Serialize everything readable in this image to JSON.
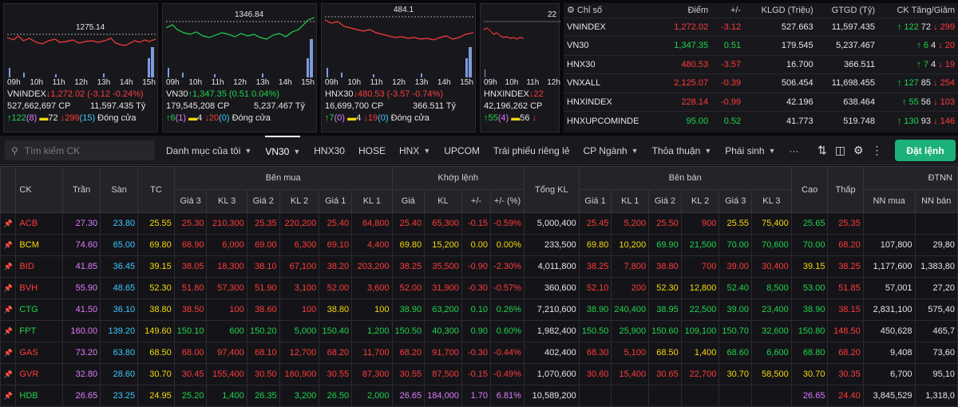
{
  "panels": [
    {
      "ref_label": "1275.14",
      "name": "VNINDEX",
      "arrow": "↓",
      "value": "1,272.02 (-3.12 -0.24%)",
      "dir": "dn",
      "vol": "527,662,697 CP",
      "val": "11,597.435 Tỷ",
      "c_up": "122",
      "c_up2": "(8)",
      "c_ref": "72",
      "c_dn": "299",
      "c_dn2": "(15)",
      "status": "Đóng cửa",
      "axis": [
        "09h",
        "10h",
        "11h",
        "12h",
        "13h",
        "14h",
        "15h"
      ]
    },
    {
      "ref_label": "1346.84",
      "name": "VN30",
      "arrow": "↑",
      "value": "1,347.35 (0.51 0.04%)",
      "dir": "up",
      "vol": "179,545,208 CP",
      "val": "5,237.467 Tỷ",
      "c_up": "6",
      "c_up2": "(1)",
      "c_ref": "4",
      "c_dn": "20",
      "c_dn2": "(0)",
      "status": "Đóng cửa",
      "axis": [
        "09h",
        "10h",
        "11h",
        "12h",
        "13h",
        "14h",
        "15h"
      ]
    },
    {
      "ref_label": "484.1",
      "name": "HNX30",
      "arrow": "↓",
      "value": "480.53 (-3.57 -0.74%)",
      "dir": "dn",
      "vol": "16,699,700 CP",
      "val": "366.511 Tỷ",
      "c_up": "7",
      "c_up2": "(0)",
      "c_ref": "4",
      "c_dn": "19",
      "c_dn2": "(0)",
      "status": "Đóng cửa",
      "axis": [
        "09h",
        "10h",
        "11h",
        "12h",
        "13h",
        "14h",
        "15h"
      ]
    },
    {
      "ref_label": "22",
      "name": "HNXINDEX",
      "arrow": "↓",
      "value": "22",
      "dir": "dn",
      "vol": "42,196,262 CP",
      "val": "",
      "c_up": "55",
      "c_up2": "(4)",
      "c_ref": "56",
      "c_dn": "",
      "c_dn2": "",
      "status": "",
      "axis": [
        "09h",
        "10h",
        "11h",
        "12h"
      ]
    }
  ],
  "index_table": {
    "headers": [
      "Chỉ số",
      "Điểm",
      "+/-",
      "KLGD (Triệu)",
      "GTGD (Tỷ)",
      "CK Tăng/Giảm"
    ],
    "rows": [
      {
        "name": "VNINDEX",
        "point": "1,272.02",
        "chg": "-3.12",
        "dir": "dn",
        "vol": "527.663",
        "val": "11,597.435",
        "up": "122",
        "ref": "72",
        "dn": "299"
      },
      {
        "name": "VN30",
        "point": "1,347.35",
        "chg": "0.51",
        "dir": "up",
        "vol": "179.545",
        "val": "5,237.467",
        "up": "6",
        "ref": "4",
        "dn": "20"
      },
      {
        "name": "HNX30",
        "point": "480.53",
        "chg": "-3.57",
        "dir": "dn",
        "vol": "16.700",
        "val": "366.511",
        "up": "7",
        "ref": "4",
        "dn": "19"
      },
      {
        "name": "VNXALL",
        "point": "2,125.07",
        "chg": "-0.39",
        "dir": "dn",
        "vol": "506.454",
        "val": "11,698.455",
        "up": "127",
        "ref": "85",
        "dn": "254"
      },
      {
        "name": "HNXINDEX",
        "point": "228.14",
        "chg": "-0.99",
        "dir": "dn",
        "vol": "42.196",
        "val": "638.464",
        "up": "55",
        "ref": "56",
        "dn": "103"
      },
      {
        "name": "HNXUPCOMINDE",
        "point": "95.00",
        "chg": "0.52",
        "dir": "up",
        "vol": "41.773",
        "val": "519.748",
        "up": "130",
        "ref": "93",
        "dn": "146"
      }
    ]
  },
  "toolbar": {
    "search_placeholder": "Tìm kiếm CK",
    "tabs": [
      "Danh mục của tôi",
      "VN30",
      "HNX30",
      "HOSE",
      "HNX",
      "UPCOM",
      "Trái phiếu riêng lẻ",
      "CP Ngành",
      "Thỏa thuận",
      "Phái sinh",
      "···"
    ],
    "order_button": "Đặt lệnh"
  },
  "board": {
    "group_headers": {
      "bid": "Bên mua",
      "match": "Khớp lệnh",
      "ask": "Bên bán",
      "foreign": "ĐTNN"
    },
    "cols": {
      "ck": "CK",
      "tran": "Trần",
      "san": "Sàn",
      "tc": "TC",
      "g3": "Giá 3",
      "kl3": "KL 3",
      "g2": "Giá 2",
      "kl2": "KL 2",
      "g1": "Giá 1",
      "kl1": "KL 1",
      "gia": "Giá",
      "kl": "KL",
      "pm": "+/-",
      "pct": "+/- (%)",
      "tkl": "Tổng KL",
      "cao": "Cao",
      "thap": "Thấp",
      "nnmua": "NN mua",
      "nnban": "NN bán"
    },
    "rows": [
      {
        "ck": "ACB",
        "c": "dn",
        "tran": "27.30",
        "san": "23.80",
        "tc": "25.55",
        "b3": [
          "25.30",
          "210,300",
          "dn"
        ],
        "b2": [
          "25.35",
          "220,200",
          "dn"
        ],
        "b1": [
          "25.40",
          "64,800",
          "dn"
        ],
        "m": [
          "25.40",
          "65,300",
          "-0.15",
          "-0.59%",
          "dn"
        ],
        "tkl": "5,000,400",
        "s1": [
          "25.45",
          "5,200",
          "dn"
        ],
        "s2": [
          "25.50",
          "900",
          "dn"
        ],
        "s3": [
          "25.55",
          "75,400",
          "ref"
        ],
        "cao": [
          "25.65",
          "up"
        ],
        "thap": [
          "25.35",
          "dn"
        ],
        "nnm": "",
        "nnb": ""
      },
      {
        "ck": "BCM",
        "c": "ref",
        "tran": "74.60",
        "san": "65.00",
        "tc": "69.80",
        "b3": [
          "68.90",
          "6,000",
          "dn"
        ],
        "b2": [
          "69.00",
          "6,300",
          "dn"
        ],
        "b1": [
          "69.10",
          "4,400",
          "dn"
        ],
        "m": [
          "69.80",
          "15,200",
          "0.00",
          "0.00%",
          "ref"
        ],
        "tkl": "233,500",
        "s1": [
          "69.80",
          "10,200",
          "ref"
        ],
        "s2": [
          "69.90",
          "21,500",
          "up"
        ],
        "s3": [
          "70.00",
          "70,600",
          "up"
        ],
        "cao": [
          "70.00",
          "up"
        ],
        "thap": [
          "68.20",
          "dn"
        ],
        "nnm": "107,800",
        "nnb": "29,80"
      },
      {
        "ck": "BID",
        "c": "dn",
        "tran": "41.85",
        "san": "36.45",
        "tc": "39.15",
        "b3": [
          "38.05",
          "18,300",
          "dn"
        ],
        "b2": [
          "38.10",
          "67,100",
          "dn"
        ],
        "b1": [
          "38.20",
          "203,200",
          "dn"
        ],
        "m": [
          "38.25",
          "35,500",
          "-0.90",
          "-2.30%",
          "dn"
        ],
        "tkl": "4,011,800",
        "s1": [
          "38.25",
          "7,800",
          "dn"
        ],
        "s2": [
          "38.80",
          "700",
          "dn"
        ],
        "s3": [
          "39.00",
          "30,400",
          "dn"
        ],
        "cao": [
          "39.15",
          "ref"
        ],
        "thap": [
          "38.25",
          "dn"
        ],
        "nnm": "1,177,600",
        "nnb": "1,383,80"
      },
      {
        "ck": "BVH",
        "c": "dn",
        "tran": "55.90",
        "san": "48.65",
        "tc": "52.30",
        "b3": [
          "51.80",
          "57,300",
          "dn"
        ],
        "b2": [
          "51.90",
          "3,100",
          "dn"
        ],
        "b1": [
          "52.00",
          "3,600",
          "dn"
        ],
        "m": [
          "52.00",
          "31,900",
          "-0.30",
          "-0.57%",
          "dn"
        ],
        "tkl": "360,600",
        "s1": [
          "52.10",
          "200",
          "dn"
        ],
        "s2": [
          "52.30",
          "12,800",
          "ref"
        ],
        "s3": [
          "52.40",
          "8,500",
          "up"
        ],
        "cao": [
          "53.00",
          "up"
        ],
        "thap": [
          "51.85",
          "dn"
        ],
        "nnm": "57,001",
        "nnb": "27,20"
      },
      {
        "ck": "CTG",
        "c": "up",
        "tran": "41.50",
        "san": "36.10",
        "tc": "38.80",
        "b3": [
          "38.50",
          "100",
          "dn"
        ],
        "b2": [
          "38.60",
          "100",
          "dn"
        ],
        "b1": [
          "38.80",
          "100",
          "ref"
        ],
        "m": [
          "38.90",
          "63,200",
          "0.10",
          "0.26%",
          "up"
        ],
        "tkl": "7,210,600",
        "s1": [
          "38.90",
          "240,400",
          "up"
        ],
        "s2": [
          "38.95",
          "22,500",
          "up"
        ],
        "s3": [
          "39.00",
          "23,400",
          "up"
        ],
        "cao": [
          "38.90",
          "up"
        ],
        "thap": [
          "38.15",
          "dn"
        ],
        "nnm": "2,831,100",
        "nnb": "575,40"
      },
      {
        "ck": "FPT",
        "c": "up",
        "tran": "160.00",
        "san": "139.20",
        "tc": "149.60",
        "b3": [
          "150.10",
          "600",
          "up"
        ],
        "b2": [
          "150.20",
          "5,000",
          "up"
        ],
        "b1": [
          "150.40",
          "1,200",
          "up"
        ],
        "m": [
          "150.50",
          "40,300",
          "0.90",
          "0.60%",
          "up"
        ],
        "tkl": "1,982,400",
        "s1": [
          "150.50",
          "25,900",
          "up"
        ],
        "s2": [
          "150.60",
          "109,100",
          "up"
        ],
        "s3": [
          "150.70",
          "32,600",
          "up"
        ],
        "cao": [
          "150.80",
          "up"
        ],
        "thap": [
          "148.50",
          "dn"
        ],
        "nnm": "450,628",
        "nnb": "465,7"
      },
      {
        "ck": "GAS",
        "c": "dn",
        "tran": "73.20",
        "san": "63.80",
        "tc": "68.50",
        "b3": [
          "68.00",
          "97,400",
          "dn"
        ],
        "b2": [
          "68.10",
          "12,700",
          "dn"
        ],
        "b1": [
          "68.20",
          "11,700",
          "dn"
        ],
        "m": [
          "68.20",
          "91,700",
          "-0.30",
          "-0.44%",
          "dn"
        ],
        "tkl": "402,400",
        "s1": [
          "68.30",
          "5,100",
          "dn"
        ],
        "s2": [
          "68.50",
          "1,400",
          "ref"
        ],
        "s3": [
          "68.60",
          "6,600",
          "up"
        ],
        "cao": [
          "68.80",
          "up"
        ],
        "thap": [
          "68.20",
          "dn"
        ],
        "nnm": "9,408",
        "nnb": "73,60"
      },
      {
        "ck": "GVR",
        "c": "dn",
        "tran": "32.80",
        "san": "28.60",
        "tc": "30.70",
        "b3": [
          "30.45",
          "155,400",
          "dn"
        ],
        "b2": [
          "30.50",
          "160,900",
          "dn"
        ],
        "b1": [
          "30.55",
          "87,300",
          "dn"
        ],
        "m": [
          "30.55",
          "87,500",
          "-0.15",
          "-0.49%",
          "dn"
        ],
        "tkl": "1,070,600",
        "s1": [
          "30.60",
          "15,400",
          "dn"
        ],
        "s2": [
          "30.65",
          "22,700",
          "dn"
        ],
        "s3": [
          "30.70",
          "58,500",
          "ref"
        ],
        "cao": [
          "30.70",
          "ref"
        ],
        "thap": [
          "30.35",
          "dn"
        ],
        "nnm": "6,700",
        "nnb": "95,10"
      },
      {
        "ck": "HDB",
        "c": "up",
        "tran": "26.65",
        "san": "23.25",
        "tc": "24.95",
        "b3": [
          "25.20",
          "1,400",
          "up"
        ],
        "b2": [
          "26.35",
          "3,200",
          "up"
        ],
        "b1": [
          "26.50",
          "2,000",
          "up"
        ],
        "m": [
          "26.65",
          "184,000",
          "1.70",
          "6.81%",
          "ceil"
        ],
        "tkl": "10,589,200",
        "s1": [
          "",
          "",
          ""
        ],
        "s2": [
          "",
          "",
          ""
        ],
        "s3": [
          "",
          "",
          ""
        ],
        "cao": [
          "26.65",
          "ceil"
        ],
        "thap": [
          "24.40",
          "dn"
        ],
        "nnm": "3,845,529",
        "nnb": "1,318,0"
      }
    ]
  },
  "colors": {
    "up": "#1fd44f",
    "down": "#ff3b3b",
    "ref": "#f5d90a",
    "ceil": "#e07aff",
    "floor": "#3ec8ff",
    "accent": "#1db07a"
  }
}
